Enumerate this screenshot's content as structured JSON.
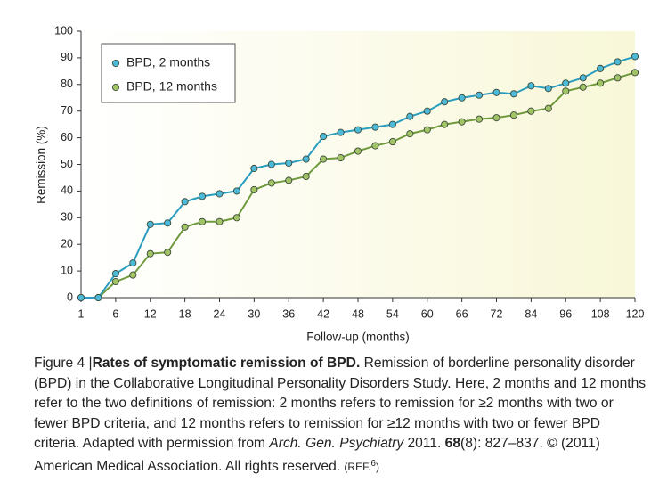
{
  "chart_data": {
    "type": "line",
    "xlabel": "Follow-up (months)",
    "ylabel": "Remission (%)",
    "categories": [
      "1",
      null,
      "6",
      null,
      "12",
      null,
      "18",
      null,
      "24",
      null,
      "30",
      null,
      "36",
      null,
      "42",
      null,
      "48",
      null,
      "54",
      null,
      "60",
      null,
      "66",
      null,
      "72",
      null,
      "84",
      null,
      "96",
      null,
      "108",
      null,
      "120"
    ],
    "series": [
      {
        "name": "BPD, 2 months",
        "color": "#2a9dbf",
        "marker_color": "#4cb9d8",
        "values": [
          0,
          0,
          9,
          13,
          27.5,
          28,
          36,
          38,
          39,
          40,
          48.5,
          50,
          50.5,
          52,
          60.5,
          62,
          63,
          64,
          65,
          68,
          70,
          73.5,
          75,
          76,
          77,
          76.5,
          79.5,
          78.5,
          80.5,
          82.5,
          86,
          88.5,
          90.5
        ]
      },
      {
        "name": "BPD, 12 months",
        "color": "#6e9a3c",
        "marker_color": "#a2c466",
        "values": [
          0,
          0,
          6,
          8.5,
          16.5,
          17,
          26.5,
          28.5,
          28.5,
          30,
          40.5,
          43,
          44,
          45.5,
          52,
          52.5,
          55,
          57,
          58.5,
          61.5,
          63,
          65,
          66,
          67,
          67.5,
          68.5,
          70,
          71,
          77.5,
          79,
          80.5,
          82.5,
          84.5
        ]
      }
    ],
    "ylim": [
      0,
      100
    ],
    "yticks": [
      0,
      10,
      20,
      30,
      40,
      50,
      60,
      70,
      80,
      90,
      100
    ],
    "legend": "upper left"
  },
  "caption": {
    "label": "Figure 4 |",
    "title": "Rates of symptomatic remission of BPD.",
    "text": " Remission of borderline personality disorder (BPD) in the Collaborative Longitudinal Personality Disorders Study. Here, 2 months and 12 months refer to the two definitions of remission: 2 months refers to remission for ≥2 months with two or fewer BPD criteria, and 12 months refers to remission for ≥12 months with two or fewer BPD criteria. Adapted with permission from ",
    "journal": "Arch. Gen. Psychiatry",
    "year": " 2011. ",
    "volume": "68",
    "pages": "(8): 827–837. © (2011) American Medical Association. All rights reserved. ",
    "ref": "(REF.",
    "ref_number": "6",
    "ref_close": ")"
  }
}
